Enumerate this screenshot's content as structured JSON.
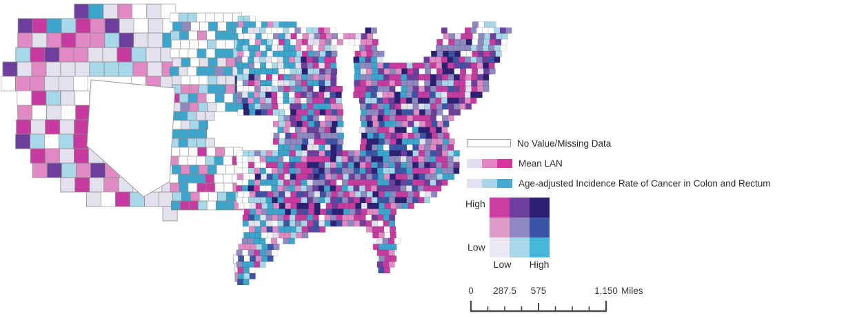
{
  "legend": {
    "no_value_label": "No Value/Missing Data",
    "mean_lan_label": "Mean LAN",
    "mean_lan_swatches": [
      "#e2dfee",
      "#e285c2",
      "#d6359e"
    ],
    "cancer_label": "Age-adjusted Incidence Rate of Cancer in Colon and Rectum",
    "cancer_swatches": [
      "#e2e1ef",
      "#a9d4e8",
      "#47a9d1"
    ],
    "bivariate_matrix": {
      "y_axis_top": "High",
      "y_axis_bottom": "Low",
      "x_axis_left": "Low",
      "x_axis_right": "High",
      "rows": [
        [
          "#cb3da0",
          "#6e3e9d",
          "#2b2076"
        ],
        [
          "#dc9ac7",
          "#8e89c0",
          "#3b55a6"
        ],
        [
          "#ece8f3",
          "#a7d8e9",
          "#47b7d9"
        ]
      ]
    }
  },
  "scale_bar": {
    "segments": 8,
    "tick_labels": [
      {
        "text": "0",
        "seg": 0
      },
      {
        "text": "287.5",
        "seg": 2
      },
      {
        "text": "575",
        "seg": 4
      },
      {
        "text": "1,150",
        "seg": 8
      }
    ],
    "unit": "Miles"
  },
  "map_palette": {
    "magenta": "#c73a9f",
    "pink": "#e089c4",
    "purple": "#6e3e9d",
    "slate_purple": "#8e89c0",
    "navy": "#2b2076",
    "blue": "#3b55a6",
    "teal": "#3aa6ce",
    "light_blue": "#a7d8e9",
    "lavender": "#e4e1ef",
    "missing": "#ffffff"
  }
}
